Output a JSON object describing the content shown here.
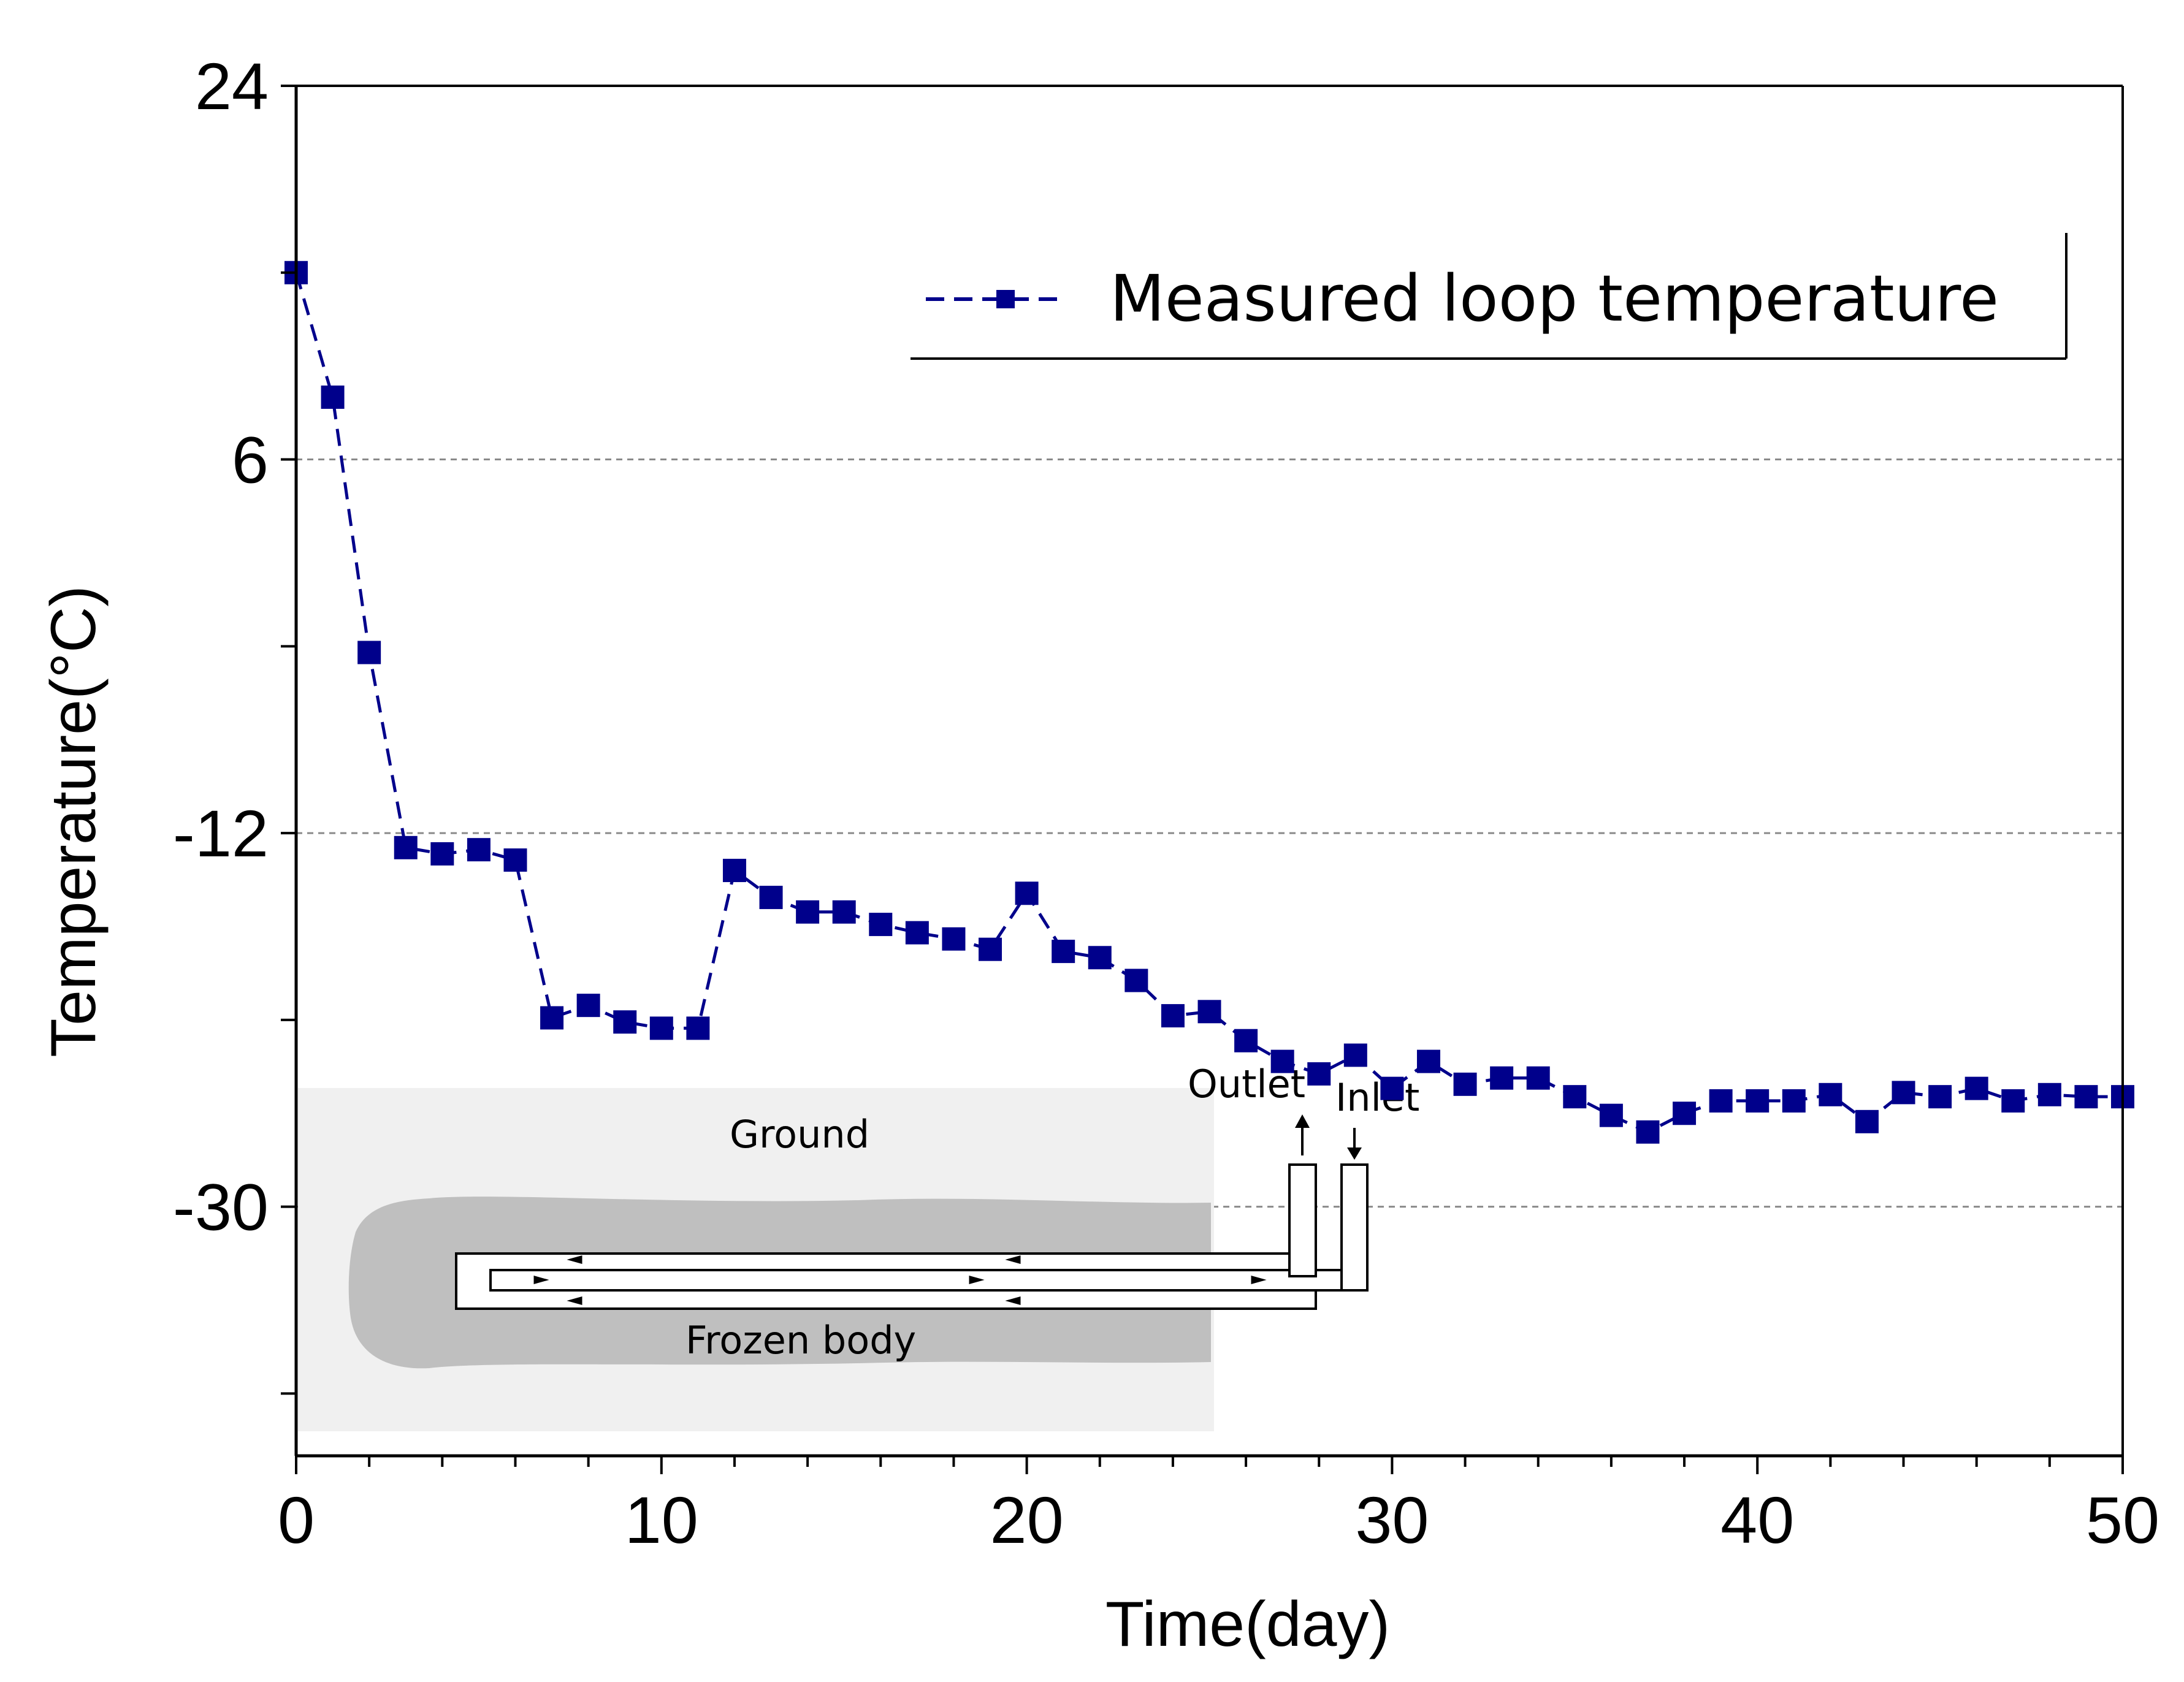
{
  "chart_data": {
    "type": "line",
    "title": "",
    "xlabel": "Time(day)",
    "ylabel": "Temperature(°C)",
    "xlim": [
      0,
      50
    ],
    "ylim": [
      -42,
      24
    ],
    "xticks": [
      "0",
      "10",
      "20",
      "30",
      "40",
      "50"
    ],
    "yticks": [
      "24",
      "6",
      "-12",
      "-30"
    ],
    "ytick_values": [
      24,
      6,
      -12,
      -30
    ],
    "gridlines_y": [
      6,
      -12,
      -30
    ],
    "legend_position": "top-right",
    "series": [
      {
        "name": "Measured loop temperature",
        "color": "#00008b",
        "x": [
          0,
          1,
          2,
          3,
          4,
          5,
          6,
          7,
          8,
          9,
          10,
          11,
          12,
          13,
          14,
          15,
          16,
          17,
          18,
          19,
          20,
          21,
          22,
          23,
          24,
          25,
          26,
          27,
          28,
          29,
          30,
          31,
          32,
          33,
          34,
          35,
          36,
          37,
          38,
          39,
          40,
          41,
          42,
          43,
          44,
          45,
          46,
          47,
          48,
          49,
          50
        ],
        "values": [
          15,
          9,
          -3.3,
          -12.7,
          -13,
          -12.8,
          -13.3,
          -20.9,
          -20.3,
          -21.1,
          -21.4,
          -21.4,
          -13.8,
          -15.1,
          -15.8,
          -15.8,
          -16.4,
          -16.8,
          -17.1,
          -17.6,
          -14.9,
          -17.7,
          -18,
          -19.1,
          -20.8,
          -20.6,
          -22,
          -23,
          -23.6,
          -22.7,
          -24.3,
          -23,
          -24.1,
          -23.8,
          -23.8,
          -24.7,
          -25.6,
          -26.4,
          -25.5,
          -24.9,
          -24.9,
          -24.9,
          -24.6,
          -25.9,
          -24.5,
          -24.7,
          -24.3,
          -24.9,
          -24.6,
          -24.7,
          -24.7
        ]
      }
    ],
    "inset": {
      "labels": {
        "ground": "Ground",
        "frozen_body": "Frozen body",
        "outlet": "Outlet",
        "inlet": "Inlet"
      }
    }
  }
}
